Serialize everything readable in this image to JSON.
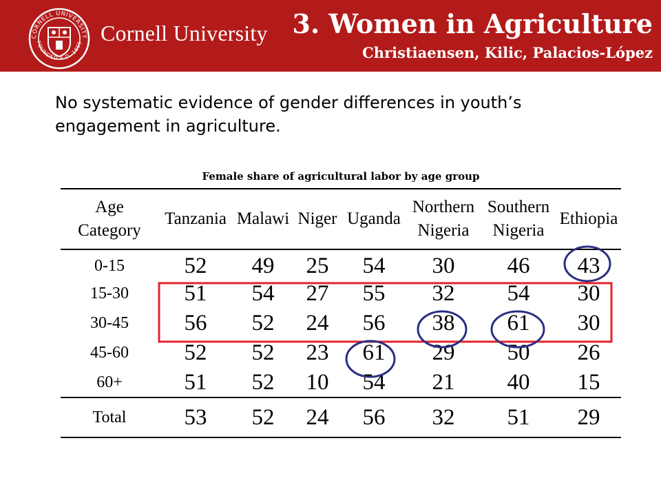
{
  "header": {
    "brand": "Cornell University",
    "seal_text_top": "CORNELL UNIVERSITY",
    "seal_text_bottom": "FOUNDED A.D. 1865",
    "title": "3. Women in Agriculture",
    "authors": "Christiaensen, Kilic, Palacios-López",
    "bg_color": "#b31b1b"
  },
  "intro": "No systematic evidence of gender differences in youth’s engagement in agriculture.",
  "caption": "Female share of agricultural labor by age group",
  "table": {
    "headers": [
      {
        "line1": "Age",
        "line2": "Category"
      },
      {
        "line1": "Tanzania",
        "line2": ""
      },
      {
        "line1": "Malawi",
        "line2": ""
      },
      {
        "line1": "Niger",
        "line2": ""
      },
      {
        "line1": "Uganda",
        "line2": ""
      },
      {
        "line1": "Northern",
        "line2": "Nigeria"
      },
      {
        "line1": "Southern",
        "line2": "Nigeria"
      },
      {
        "line1": "Ethiopia",
        "line2": ""
      }
    ],
    "rows": [
      {
        "age": "0-15",
        "values": [
          "52",
          "49",
          "25",
          "54",
          "30",
          "46",
          "43"
        ]
      },
      {
        "age": "15-30",
        "values": [
          "51",
          "54",
          "27",
          "55",
          "32",
          "54",
          "30"
        ]
      },
      {
        "age": "30-45",
        "values": [
          "56",
          "52",
          "24",
          "56",
          "38",
          "61",
          "30"
        ]
      },
      {
        "age": "45-60",
        "values": [
          "52",
          "52",
          "23",
          "61",
          "29",
          "50",
          "26"
        ]
      },
      {
        "age": "60+",
        "values": [
          "51",
          "52",
          "10",
          "54",
          "21",
          "40",
          "15"
        ]
      }
    ],
    "total": {
      "age": "Total",
      "values": [
        "53",
        "52",
        "24",
        "56",
        "32",
        "51",
        "29"
      ]
    }
  },
  "annotations": {
    "circle_color": "#2b2f80",
    "box_color": "#e3232b",
    "circled_cells": [
      {
        "row": "0-15",
        "column": "Ethiopia"
      },
      {
        "row": "30-45",
        "column": "Northern Nigeria"
      },
      {
        "row": "30-45",
        "column": "Southern Nigeria"
      },
      {
        "row": "45-60",
        "column": "Uganda"
      }
    ],
    "boxed_rows": [
      "15-30",
      "30-45"
    ]
  }
}
